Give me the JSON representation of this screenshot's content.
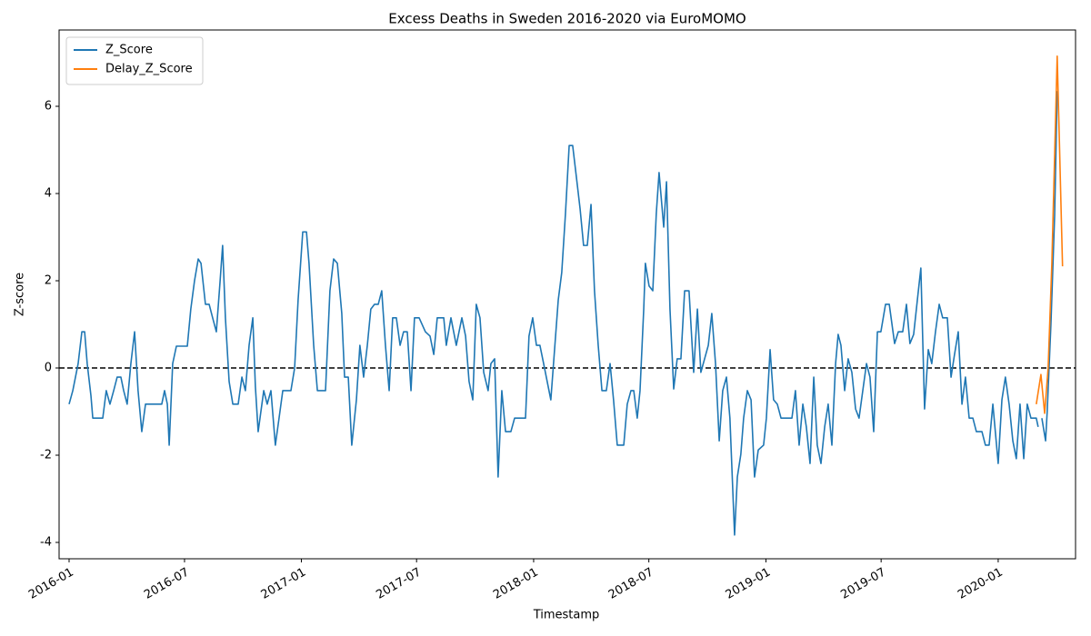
{
  "chart_data": {
    "type": "line",
    "title": "Excess Deaths in Sweden 2016-2020 via EuroMOMO",
    "x_label": "Timestamp",
    "y_label": "Z-score",
    "xlim": [
      2015.957,
      2020.333
    ],
    "ylim": [
      -4.375,
      7.75
    ],
    "xticks": [
      {
        "value": 2016.0,
        "label": "2016-01"
      },
      {
        "value": 2016.497,
        "label": "2016-07"
      },
      {
        "value": 2017.0,
        "label": "2017-01"
      },
      {
        "value": 2017.496,
        "label": "2017-07"
      },
      {
        "value": 2018.0,
        "label": "2018-01"
      },
      {
        "value": 2018.496,
        "label": "2018-07"
      },
      {
        "value": 2019.0,
        "label": "2019-01"
      },
      {
        "value": 2019.496,
        "label": "2019-07"
      },
      {
        "value": 2020.0,
        "label": "2020-01"
      }
    ],
    "yticks": [
      -4,
      -2,
      0,
      2,
      4,
      6
    ],
    "hline": 0,
    "grid": false,
    "legend": "upper left",
    "series": [
      {
        "name": "Z_Score",
        "color": "#1f77b4",
        "x": [
          2016.0,
          2016.016,
          2016.039,
          2016.055,
          2016.067,
          2016.078,
          2016.094,
          2016.102,
          2016.145,
          2016.16,
          2016.176,
          2016.192,
          2016.207,
          2016.223,
          2016.235,
          2016.25,
          2016.266,
          2016.282,
          2016.297,
          2016.313,
          2016.329,
          2016.399,
          2016.411,
          2016.423,
          2016.431,
          2016.446,
          2016.462,
          2016.509,
          2016.524,
          2016.54,
          2016.556,
          2016.568,
          2016.587,
          2016.603,
          2016.618,
          2016.634,
          2016.65,
          2016.661,
          2016.673,
          2016.689,
          2016.705,
          2016.728,
          2016.744,
          2016.759,
          2016.775,
          2016.791,
          2016.802,
          2016.814,
          2016.838,
          2016.853,
          2016.869,
          2016.888,
          2016.904,
          2016.92,
          2016.955,
          2016.971,
          2016.986,
          2017.006,
          2017.022,
          2017.033,
          2017.053,
          2017.069,
          2017.104,
          2017.123,
          2017.139,
          2017.155,
          2017.174,
          2017.186,
          2017.202,
          2017.217,
          2017.237,
          2017.252,
          2017.268,
          2017.284,
          2017.299,
          2017.315,
          2017.331,
          2017.346,
          2017.362,
          2017.378,
          2017.393,
          2017.409,
          2017.425,
          2017.44,
          2017.456,
          2017.472,
          2017.487,
          2017.507,
          2017.534,
          2017.554,
          2017.57,
          2017.585,
          2017.613,
          2017.624,
          2017.644,
          2017.667,
          2017.691,
          2017.707,
          2017.722,
          2017.738,
          2017.753,
          2017.769,
          2017.785,
          2017.804,
          2017.816,
          2017.832,
          2017.847,
          2017.863,
          2017.879,
          2017.902,
          2017.918,
          2017.965,
          2017.98,
          2017.996,
          2018.012,
          2018.027,
          2018.043,
          2018.074,
          2018.106,
          2018.121,
          2018.137,
          2018.153,
          2018.168,
          2018.184,
          2018.2,
          2018.215,
          2018.231,
          2018.247,
          2018.262,
          2018.278,
          2018.294,
          2018.313,
          2018.329,
          2018.344,
          2018.36,
          2018.388,
          2018.403,
          2018.419,
          2018.431,
          2018.446,
          2018.458,
          2018.474,
          2018.481,
          2018.497,
          2018.513,
          2018.528,
          2018.54,
          2018.56,
          2018.572,
          2018.587,
          2018.603,
          2018.618,
          2018.634,
          2018.65,
          2018.669,
          2018.689,
          2018.705,
          2018.72,
          2018.736,
          2018.752,
          2018.767,
          2018.783,
          2018.799,
          2018.814,
          2018.83,
          2018.845,
          2018.865,
          2018.877,
          2018.892,
          2018.904,
          2018.92,
          2018.936,
          2018.951,
          2018.967,
          2018.99,
          2019.002,
          2019.018,
          2019.033,
          2019.049,
          2019.065,
          2019.112,
          2019.127,
          2019.143,
          2019.159,
          2019.174,
          2019.19,
          2019.206,
          2019.221,
          2019.237,
          2019.253,
          2019.268,
          2019.284,
          2019.3,
          2019.311,
          2019.323,
          2019.339,
          2019.354,
          2019.37,
          2019.386,
          2019.401,
          2019.417,
          2019.433,
          2019.448,
          2019.464,
          2019.48,
          2019.495,
          2019.515,
          2019.531,
          2019.554,
          2019.57,
          2019.589,
          2019.605,
          2019.62,
          2019.636,
          2019.652,
          2019.667,
          2019.683,
          2019.699,
          2019.714,
          2019.73,
          2019.746,
          2019.761,
          2019.781,
          2019.797,
          2019.812,
          2019.828,
          2019.844,
          2019.859,
          2019.875,
          2019.891,
          2019.906,
          2019.93,
          2019.945,
          2019.961,
          2019.977,
          2020.0,
          2020.016,
          2020.031,
          2020.047,
          2020.063,
          2020.078,
          2020.094,
          2020.11,
          2020.125,
          2020.141,
          2020.164,
          2020.172,
          2020.18,
          2020.188,
          2020.204,
          2020.211,
          2020.227,
          2020.243,
          2020.254
        ],
        "values": [
          -0.83,
          -0.52,
          0.1,
          0.83,
          0.83,
          0.1,
          -0.63,
          -1.15,
          -1.15,
          -0.52,
          -0.83,
          -0.52,
          -0.21,
          -0.21,
          -0.52,
          -0.83,
          0.1,
          0.83,
          -0.52,
          -1.46,
          -0.83,
          -0.83,
          -0.52,
          -0.83,
          -1.77,
          0.1,
          0.5,
          0.5,
          1.35,
          2.0,
          2.5,
          2.4,
          1.46,
          1.46,
          1.15,
          0.83,
          1.98,
          2.81,
          1.15,
          -0.31,
          -0.83,
          -0.83,
          -0.21,
          -0.52,
          0.52,
          1.15,
          -0.42,
          -1.46,
          -0.52,
          -0.83,
          -0.52,
          -1.77,
          -1.15,
          -0.52,
          -0.52,
          0.0,
          1.56,
          3.12,
          3.12,
          2.4,
          0.52,
          -0.52,
          -0.52,
          1.77,
          2.5,
          2.4,
          1.25,
          -0.21,
          -0.21,
          -1.77,
          -0.73,
          0.52,
          -0.21,
          0.52,
          1.35,
          1.46,
          1.46,
          1.77,
          0.52,
          -0.52,
          1.15,
          1.15,
          0.52,
          0.83,
          0.83,
          -0.52,
          1.15,
          1.15,
          0.83,
          0.73,
          0.31,
          1.15,
          1.15,
          0.52,
          1.15,
          0.52,
          1.15,
          0.73,
          -0.31,
          -0.73,
          1.46,
          1.15,
          -0.1,
          -0.52,
          0.1,
          0.21,
          -2.5,
          -0.52,
          -1.46,
          -1.46,
          -1.15,
          -1.15,
          0.73,
          1.15,
          0.52,
          0.52,
          0.1,
          -0.73,
          1.56,
          2.19,
          3.54,
          5.1,
          5.1,
          4.38,
          3.65,
          2.81,
          2.81,
          3.75,
          1.77,
          0.52,
          -0.52,
          -0.52,
          0.1,
          -0.73,
          -1.77,
          -1.77,
          -0.83,
          -0.52,
          -0.52,
          -1.15,
          -0.52,
          1.35,
          2.4,
          1.88,
          1.77,
          3.54,
          4.48,
          3.23,
          4.27,
          1.35,
          -0.48,
          0.21,
          0.21,
          1.77,
          1.77,
          -0.1,
          1.35,
          -0.1,
          0.21,
          0.52,
          1.25,
          0.1,
          -1.67,
          -0.52,
          -0.21,
          -1.15,
          -3.83,
          -2.5,
          -1.98,
          -1.15,
          -0.52,
          -0.73,
          -2.5,
          -1.88,
          -1.77,
          -1.15,
          0.42,
          -0.73,
          -0.83,
          -1.15,
          -1.15,
          -0.52,
          -1.77,
          -0.83,
          -1.35,
          -2.19,
          -0.21,
          -1.77,
          -2.19,
          -1.35,
          -0.83,
          -1.77,
          0.1,
          0.77,
          0.52,
          -0.52,
          0.21,
          -0.1,
          -0.94,
          -1.15,
          -0.52,
          0.1,
          -0.21,
          -1.46,
          0.83,
          0.83,
          1.46,
          1.46,
          0.56,
          0.83,
          0.83,
          1.46,
          0.56,
          0.77,
          1.56,
          2.29,
          -0.94,
          0.42,
          0.1,
          0.83,
          1.46,
          1.15,
          1.15,
          -0.21,
          0.31,
          0.83,
          -0.83,
          -0.21,
          -1.15,
          -1.15,
          -1.46,
          -1.46,
          -1.77,
          -1.77,
          -0.83,
          -2.19,
          -0.73,
          -0.21,
          -0.83,
          -1.67,
          -2.08,
          -0.83,
          -2.08,
          -0.83,
          -1.15,
          -1.15,
          -1.35,
          null,
          -1.15,
          -1.67,
          -1.0,
          1.0,
          3.5,
          6.35
        ]
      },
      {
        "name": "Delay_Z_Score",
        "color": "#ff7f0e",
        "x": [
          2020.164,
          2020.184,
          2020.2,
          2020.215,
          2020.231,
          2020.254,
          2020.262,
          2020.277
        ],
        "values": [
          -0.83,
          -0.15,
          -1.04,
          0.0,
          2.4,
          7.15,
          5.5,
          2.33
        ]
      }
    ]
  }
}
